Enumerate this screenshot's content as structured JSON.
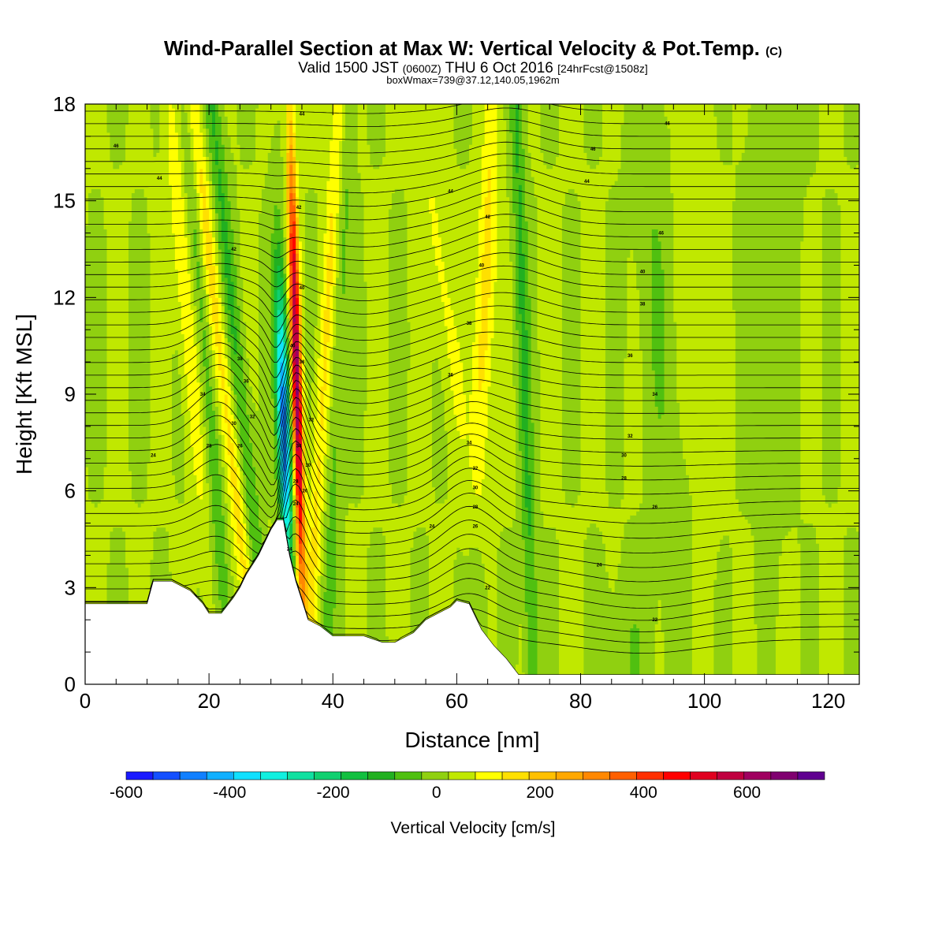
{
  "chart_data": {
    "type": "heatmap",
    "title": "Wind-Parallel Section at Max W: Vertical Velocity & Pot.Temp.",
    "title_mark": "(C)",
    "subtitle_parts": [
      "Valid 1500 JST ",
      "(0600Z)",
      " THU 6 Oct 2016 ",
      "[24hrFcst@1508z]"
    ],
    "subtitle2": "boxWmax=739@37.12,140.05,1962m",
    "xlabel": "Distance [nm]",
    "ylabel": "Height [Kft MSL]",
    "xlim": [
      0,
      125
    ],
    "ylim": [
      0,
      18
    ],
    "x_ticks": [
      "0",
      "20",
      "40",
      "60",
      "80",
      "100",
      "120"
    ],
    "y_ticks": [
      "0",
      "3",
      "6",
      "9",
      "12",
      "15",
      "18"
    ],
    "colorbar": {
      "label": "Vertical Velocity [cm/s]",
      "range": [
        -600,
        750
      ],
      "tick_labels": [
        "-600",
        "-400",
        "-200",
        "0",
        "200",
        "400",
        "600"
      ],
      "colors": [
        "#1a1aff",
        "#1450ff",
        "#1080ff",
        "#10b0ff",
        "#10e0ff",
        "#10f0e0",
        "#10e0a0",
        "#10d070",
        "#12c040",
        "#22b020",
        "#50c010",
        "#90d010",
        "#c0e800",
        "#ffff00",
        "#ffe000",
        "#ffc000",
        "#ffa800",
        "#ff8800",
        "#ff6000",
        "#ff3000",
        "#ff0000",
        "#e00020",
        "#c00040",
        "#a00060",
        "#800070",
        "#600090"
      ]
    },
    "terrain": [
      [
        0,
        2.5
      ],
      [
        10,
        2.5
      ],
      [
        11,
        3.2
      ],
      [
        14,
        3.2
      ],
      [
        16,
        3.0
      ],
      [
        17,
        2.9
      ],
      [
        18,
        2.7
      ],
      [
        19,
        2.5
      ],
      [
        20,
        2.2
      ],
      [
        22,
        2.2
      ],
      [
        24,
        2.7
      ],
      [
        25,
        3.0
      ],
      [
        26,
        3.4
      ],
      [
        27,
        3.7
      ],
      [
        28,
        4.0
      ],
      [
        29,
        4.4
      ],
      [
        30,
        4.8
      ],
      [
        31,
        5.1
      ],
      [
        32,
        5.1
      ],
      [
        33,
        4.0
      ],
      [
        34,
        3.2
      ],
      [
        35,
        2.6
      ],
      [
        36,
        2.0
      ],
      [
        38,
        1.8
      ],
      [
        40,
        1.5
      ],
      [
        45,
        1.5
      ],
      [
        48,
        1.3
      ],
      [
        50,
        1.3
      ],
      [
        53,
        1.6
      ],
      [
        55,
        2.0
      ],
      [
        57,
        2.2
      ],
      [
        59,
        2.4
      ],
      [
        60,
        2.6
      ],
      [
        62,
        2.5
      ],
      [
        64,
        1.7
      ],
      [
        66,
        1.2
      ],
      [
        68,
        0.8
      ],
      [
        70,
        0.3
      ],
      [
        125,
        0.3
      ]
    ],
    "theta_contour_labels": [
      {
        "text": "46",
        "x": 5,
        "y": 16.7
      },
      {
        "text": "44",
        "x": 12,
        "y": 15.7
      },
      {
        "text": "42",
        "x": 24,
        "y": 13.5
      },
      {
        "text": "40",
        "x": 33.5,
        "y": 10.5
      },
      {
        "text": "38",
        "x": 25,
        "y": 10.1
      },
      {
        "text": "36",
        "x": 26,
        "y": 9.4
      },
      {
        "text": "34",
        "x": 19,
        "y": 9.0
      },
      {
        "text": "32",
        "x": 27,
        "y": 8.3
      },
      {
        "text": "30",
        "x": 24,
        "y": 8.1
      },
      {
        "text": "28",
        "x": 20,
        "y": 7.4
      },
      {
        "text": "26",
        "x": 25,
        "y": 7.4
      },
      {
        "text": "24",
        "x": 11,
        "y": 7.1
      },
      {
        "text": "44",
        "x": 35,
        "y": 17.7
      },
      {
        "text": "42",
        "x": 34.5,
        "y": 14.8
      },
      {
        "text": "40",
        "x": 35,
        "y": 12.3
      },
      {
        "text": "38",
        "x": 35,
        "y": 10.0
      },
      {
        "text": "32",
        "x": 36.5,
        "y": 8.2
      },
      {
        "text": "34",
        "x": 34.5,
        "y": 7.4
      },
      {
        "text": "30",
        "x": 36,
        "y": 6.8
      },
      {
        "text": "28",
        "x": 34,
        "y": 6.3
      },
      {
        "text": "26",
        "x": 35.5,
        "y": 6.0
      },
      {
        "text": "24",
        "x": 34,
        "y": 5.6
      },
      {
        "text": "24",
        "x": 33,
        "y": 4.2
      },
      {
        "text": "44",
        "x": 59,
        "y": 15.3
      },
      {
        "text": "42",
        "x": 65,
        "y": 14.5
      },
      {
        "text": "40",
        "x": 64,
        "y": 13.0
      },
      {
        "text": "38",
        "x": 62,
        "y": 11.2
      },
      {
        "text": "36",
        "x": 59,
        "y": 9.6
      },
      {
        "text": "34",
        "x": 62,
        "y": 7.5
      },
      {
        "text": "32",
        "x": 63,
        "y": 6.7
      },
      {
        "text": "30",
        "x": 63,
        "y": 6.1
      },
      {
        "text": "28",
        "x": 63,
        "y": 5.5
      },
      {
        "text": "26",
        "x": 63,
        "y": 4.9
      },
      {
        "text": "24",
        "x": 56,
        "y": 4.9
      },
      {
        "text": "22",
        "x": 65,
        "y": 3.0
      },
      {
        "text": "46",
        "x": 94,
        "y": 17.4
      },
      {
        "text": "46",
        "x": 82,
        "y": 16.6
      },
      {
        "text": "44",
        "x": 81,
        "y": 15.6
      },
      {
        "text": "46",
        "x": 93,
        "y": 14.0
      },
      {
        "text": "40",
        "x": 90,
        "y": 12.8
      },
      {
        "text": "38",
        "x": 90,
        "y": 11.8
      },
      {
        "text": "36",
        "x": 88,
        "y": 10.2
      },
      {
        "text": "34",
        "x": 92,
        "y": 9.0
      },
      {
        "text": "32",
        "x": 88,
        "y": 7.7
      },
      {
        "text": "30",
        "x": 87,
        "y": 7.1
      },
      {
        "text": "28",
        "x": 87,
        "y": 6.4
      },
      {
        "text": "26",
        "x": 92,
        "y": 5.5
      },
      {
        "text": "24",
        "x": 83,
        "y": 3.7
      },
      {
        "text": "22",
        "x": 92,
        "y": 2.0
      }
    ]
  }
}
